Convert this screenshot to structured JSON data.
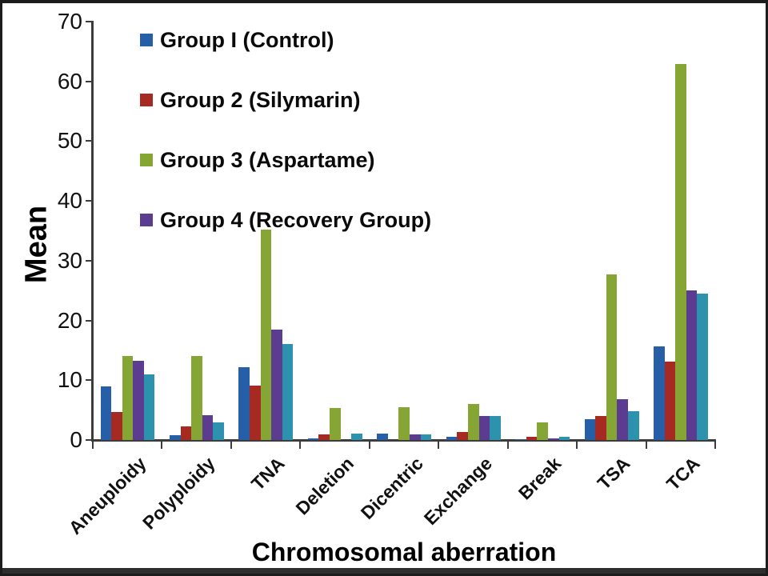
{
  "chart_data": {
    "type": "bar",
    "title": "",
    "xlabel": "Chromosomal aberration",
    "ylabel": "Mean",
    "ylim": [
      0,
      70
    ],
    "yticks": [
      0,
      10,
      20,
      30,
      40,
      50,
      60,
      70
    ],
    "grid": false,
    "legend_position": "top-left",
    "categories": [
      "Aneuploidy",
      "Polyploidy",
      "TNA",
      "Deletion",
      "Dicentric",
      "Exchange",
      "Break",
      "TSA",
      "TCA"
    ],
    "series": [
      {
        "name": "Group I (Control)",
        "color": "#275EA8",
        "in_legend": true,
        "values": [
          9.0,
          0.8,
          12.2,
          0.3,
          1.1,
          0.5,
          0.1,
          3.5,
          15.7
        ]
      },
      {
        "name": "Group 2 (Silymarin)",
        "color": "#A62A21",
        "in_legend": true,
        "values": [
          4.7,
          2.3,
          9.1,
          0.9,
          0.0,
          1.3,
          0.6,
          4.0,
          13.1
        ]
      },
      {
        "name": "Group 3 (Aspartame)",
        "color": "#85A534",
        "in_legend": true,
        "values": [
          14.0,
          14.0,
          35.2,
          5.4,
          5.5,
          6.0,
          3.0,
          27.7,
          62.9
        ]
      },
      {
        "name": "Group 4 (Recovery Group)",
        "color": "#5C3C91",
        "in_legend": true,
        "values": [
          13.2,
          4.2,
          18.5,
          0.0,
          1.0,
          4.0,
          0.3,
          6.8,
          25.0
        ]
      },
      {
        "name": "",
        "color": "#2C92AE",
        "in_legend": false,
        "values": [
          11.0,
          3.0,
          16.1,
          1.1,
          1.0,
          4.0,
          0.5,
          4.8,
          24.5
        ]
      }
    ]
  }
}
